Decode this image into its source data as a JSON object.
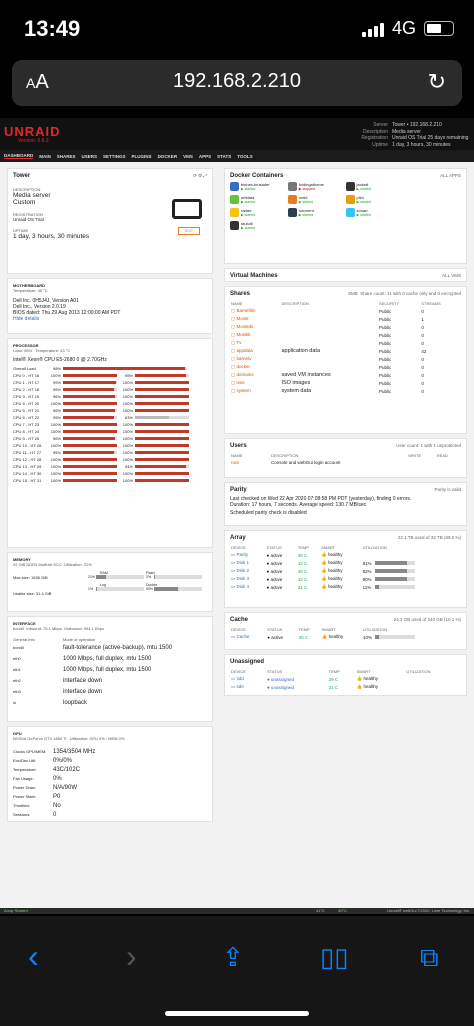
{
  "ios": {
    "time": "13:49",
    "network": "4G"
  },
  "browser": {
    "aa_small": "A",
    "aa_big": "A",
    "url": "192.168.2.210"
  },
  "unraid": {
    "logo": "UNRAID",
    "version": "Version: 6.8.3",
    "server": [
      {
        "k": "Server",
        "v": "Tower • 192.168.2.210"
      },
      {
        "k": "Description",
        "v": "Media server"
      },
      {
        "k": "Registration",
        "v": "Unraid OS Trial 25 days remaining"
      },
      {
        "k": "Uptime",
        "v": "1 day, 3 hours, 30 minutes"
      }
    ],
    "nav": [
      "DASHBOARD",
      "MAIN",
      "SHARES",
      "USERS",
      "SETTINGS",
      "PLUGINS",
      "DOCKER",
      "VMS",
      "APPS",
      "STATS",
      "TOOLS"
    ],
    "tower": {
      "title": "Tower",
      "desc_label": "DESCRIPTION",
      "desc1": "Media server",
      "desc2": "Custom",
      "reg_label": "REGISTRATION",
      "reg_value": "Unraid OS Trial",
      "uptime_label": "UPTIME",
      "uptime": "1 day, 3 hours, 30 minutes",
      "edit": "EDIT"
    },
    "mb": {
      "title": "MOTHERBOARD",
      "temp": "Temperature: 40 °C",
      "l1": "Dell Inc. 0H5J4J, Version A01",
      "l2": "Dell Inc., Version 2.0.19",
      "l3": "BIOS dated: Thu 29 Aug 2013 12:00:00 AM PDT",
      "more": "Hide details"
    },
    "proc": {
      "title": "PROCESSOR",
      "load": "Load: 98%",
      "temp": "Temperature: 43 °C",
      "model": "Intel® Xeon® CPU E5-2680 0 @ 2.70GHz",
      "overall": {
        "name": "Overall Load",
        "pct": "98%",
        "v": 98
      },
      "rows": [
        {
          "n": "CPU 0 - HT 16",
          "a": "100%",
          "av": 100,
          "b": "95%",
          "bv": 95
        },
        {
          "n": "CPU 1 - HT 17",
          "a": "99%",
          "av": 99,
          "b": "100%",
          "bv": 100
        },
        {
          "n": "CPU 2 - HT 18",
          "a": "95%",
          "av": 95,
          "b": "100%",
          "bv": 100
        },
        {
          "n": "CPU 3 - HT 19",
          "a": "96%",
          "av": 96,
          "b": "100%",
          "bv": 100
        },
        {
          "n": "CPU 4 - HT 20",
          "a": "100%",
          "av": 100,
          "b": "100%",
          "bv": 100
        },
        {
          "n": "CPU 5 - HT 21",
          "a": "96%",
          "av": 96,
          "b": "100%",
          "bv": 100
        },
        {
          "n": "CPU 6 - HT 22",
          "a": "95%",
          "av": 95,
          "b": "63%",
          "bv": 63
        },
        {
          "n": "CPU 7 - HT 23",
          "a": "100%",
          "av": 100,
          "b": "100%",
          "bv": 100
        },
        {
          "n": "CPU 8 - HT 24",
          "a": "100%",
          "av": 100,
          "b": "100%",
          "bv": 100
        },
        {
          "n": "CPU 9 - HT 25",
          "a": "96%",
          "av": 96,
          "b": "100%",
          "bv": 100
        },
        {
          "n": "CPU 10 - HT 26",
          "a": "100%",
          "av": 100,
          "b": "100%",
          "bv": 100
        },
        {
          "n": "CPU 11 - HT 27",
          "a": "95%",
          "av": 95,
          "b": "100%",
          "bv": 100
        },
        {
          "n": "CPU 12 - HT 28",
          "a": "100%",
          "av": 100,
          "b": "100%",
          "bv": 100
        },
        {
          "n": "CPU 13 - HT 29",
          "a": "100%",
          "av": 100,
          "b": "94%",
          "bv": 94
        },
        {
          "n": "CPU 14 - HT 30",
          "a": "100%",
          "av": 100,
          "b": "100%",
          "bv": 100
        },
        {
          "n": "CPU 15 - HT 31",
          "a": "100%",
          "av": 100,
          "b": "100%",
          "bv": 100
        }
      ]
    },
    "memory": {
      "title": "MEMORY",
      "sub": "32 GiB DDR3 Multi-bit ECC",
      "util": "Utilization: 21%",
      "max": "Max size: 1536 GiB",
      "usable": "Usable size: 31.4 GiB",
      "ram": "RAM",
      "ram_p": "21%",
      "ram_v": 21,
      "flash": "Flash",
      "flash_p": "2%",
      "flash_v": 2,
      "log": "Log",
      "log_p": "1%",
      "log_v": 1,
      "docker": "Docker",
      "docker_p": "50%",
      "docker_v": 50
    },
    "iface": {
      "title": "INTERFACE",
      "sub": "bond0",
      "inbound": "Inbound: 75.1 Mbps",
      "outbound": "Outbound: 494.1 Kbps",
      "h1": "General info",
      "h2": "Mode of operation",
      "rows": [
        {
          "n": "bond0",
          "m": "fault-tolerance (active-backup), mtu 1500"
        },
        {
          "n": "eth0",
          "m": "1000 Mbps, full duplex, mtu 1500"
        },
        {
          "n": "eth1",
          "m": "1000 Mbps, full duplex, mtu 1500"
        },
        {
          "n": "eth2",
          "m": "interface down"
        },
        {
          "n": "eth3",
          "m": "interface down"
        },
        {
          "n": "lo",
          "m": "loopback"
        }
      ]
    },
    "gpu": {
      "title": "GPU",
      "sub": "NVIDIA GeForce GTX 1650 Ti",
      "util": "Utilization: GPU 0% / MEM 0%",
      "rows": [
        {
          "k": "Clocks GPU/MEM:",
          "v": "1354/3504 MHz"
        },
        {
          "k": "Enc/Dec Util:",
          "v": "0%/0%"
        },
        {
          "k": "Temperature:",
          "v": "43C/102C"
        },
        {
          "k": "Fan Usage:",
          "v": "0%"
        },
        {
          "k": "Power Draw:",
          "v": "N/A/90W"
        },
        {
          "k": "Power State:",
          "v": "P0"
        },
        {
          "k": "Throttled:",
          "v": "No"
        },
        {
          "k": "Sessions:",
          "v": "0"
        }
      ]
    },
    "docker": {
      "title": "Docker Containers",
      "toggle": "ALL APPS",
      "items": [
        {
          "n": "binhex-krusader",
          "s": "started",
          "c": "#3b6dbf"
        },
        {
          "n": "foldingathome",
          "s": "stopped",
          "c": "#777"
        },
        {
          "n": "jackett",
          "s": "started",
          "c": "#333"
        },
        {
          "n": "",
          "s": "",
          "c": "#fff"
        },
        {
          "n": "netdata",
          "s": "started",
          "c": "#6abf3b"
        },
        {
          "n": "ombi",
          "s": "started",
          "c": "#e67e22"
        },
        {
          "n": "plex",
          "s": "started",
          "c": "#e5a00d"
        },
        {
          "n": "",
          "s": "",
          "c": "#fff"
        },
        {
          "n": "radarr",
          "s": "started",
          "c": "#f1c40f"
        },
        {
          "n": "rutorrent",
          "s": "started",
          "c": "#2c3e50"
        },
        {
          "n": "sonarr",
          "s": "started",
          "c": "#35c5f4"
        },
        {
          "n": "",
          "s": "",
          "c": "#fff"
        },
        {
          "n": "tautulli",
          "s": "started",
          "c": "#333"
        }
      ]
    },
    "vms": {
      "title": "Virtual Machines",
      "toggle": "ALL VMS"
    },
    "shares": {
      "title": "Shares",
      "mode": "SMB",
      "count": "Share count: 11 with 0 cache only and 0 encrypted",
      "cols": [
        "NAME",
        "DESCRIPTION",
        "SECURITY",
        "STREAMS"
      ],
      "rows": [
        {
          "n": "Barnefilm",
          "d": "",
          "s": "Public",
          "t": "0"
        },
        {
          "n": "Movie",
          "d": "",
          "s": "Public",
          "t": "1"
        },
        {
          "n": "Movieds",
          "d": "",
          "s": "Public",
          "t": "0"
        },
        {
          "n": "Musikk",
          "d": "",
          "s": "Public",
          "t": "0"
        },
        {
          "n": "Tv",
          "d": "",
          "s": "Public",
          "t": "0"
        },
        {
          "n": "appdata",
          "d": "application data",
          "s": "Public",
          "t": "42"
        },
        {
          "n": "barnetv",
          "d": "",
          "s": "Public",
          "t": "0"
        },
        {
          "n": "docker",
          "d": "",
          "s": "Public",
          "t": "0"
        },
        {
          "n": "domains",
          "d": "saved VM instances",
          "s": "Public",
          "t": "0"
        },
        {
          "n": "isos",
          "d": "ISO images",
          "s": "Public",
          "t": "0"
        },
        {
          "n": "system",
          "d": "system data",
          "s": "Public",
          "t": "0"
        }
      ]
    },
    "users": {
      "title": "Users",
      "count": "User count: 1 with 1 unprotected",
      "cols": [
        "NAME",
        "DESCRIPTION",
        "WRITE",
        "READ"
      ],
      "row": {
        "n": "root",
        "d": "Console and webGui login account"
      }
    },
    "parity": {
      "title": "Parity",
      "status": "Parity is valid",
      "l1": "Last checked on Wed 22 Apr 2020 07:08:58 PM PDT (yesterday), finding 0 errors.",
      "l2": "Duration: 17 hours, 7 seconds. Average speed: 130.7 MB/sec",
      "l3": "Scheduled parity check is disabled"
    },
    "array": {
      "title": "Array",
      "info": "22.1 TB used of 32 TB (69.0 %)",
      "cols": [
        "DEVICE",
        "STATUS",
        "TEMP",
        "SMART",
        "UTILIZATION"
      ],
      "rows": [
        {
          "d": "Parity",
          "s": "active",
          "t": "30 C",
          "m": "healthy",
          "u": "",
          "uv": 0
        },
        {
          "d": "Disk 1",
          "s": "active",
          "t": "32 C",
          "m": "healthy",
          "u": "81%",
          "uv": 81
        },
        {
          "d": "Disk 2",
          "s": "active",
          "t": "30 C",
          "m": "healthy",
          "u": "82%",
          "uv": 82
        },
        {
          "d": "Disk 3",
          "s": "active",
          "t": "32 C",
          "m": "healthy",
          "u": "80%",
          "uv": 80
        },
        {
          "d": "Disk 4",
          "s": "active",
          "t": "31 C",
          "m": "healthy",
          "u": "11%",
          "uv": 11
        }
      ]
    },
    "cache": {
      "title": "Cache",
      "info": "24.3 GB used of 240 GB (10.1 %)",
      "row": {
        "d": "Cache",
        "s": "active",
        "t": "30 C",
        "m": "healthy",
        "u": "10%",
        "uv": 10
      }
    },
    "unassigned": {
      "title": "Unassigned",
      "rows": [
        {
          "d": "sdd",
          "s": "unassigned",
          "t": "29 C",
          "m": "healthy"
        },
        {
          "d": "sde",
          "s": "unassigned",
          "t": "31 C",
          "m": "healthy"
        }
      ]
    },
    "footer": {
      "left": "Array Started",
      "right": "Unraid® webGui ©2020, Lime Technology, Inc.",
      "t1": "41°C",
      "t2": "40°C"
    }
  }
}
